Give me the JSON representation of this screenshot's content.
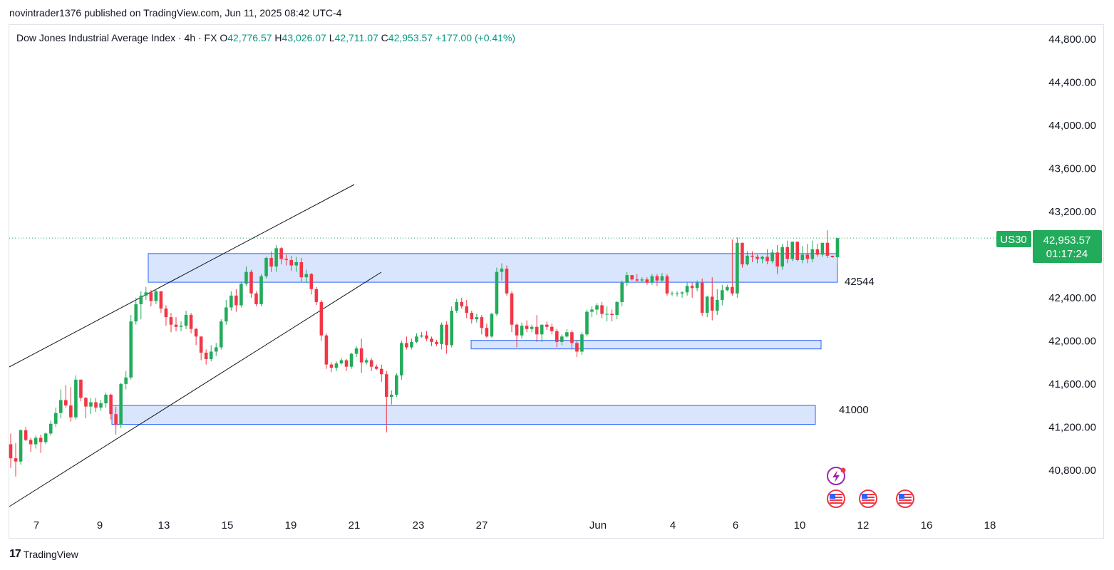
{
  "header": {
    "publish_line": "novintrader1376 published on TradingView.com, Jun 11, 2025 08:42 UTC-4"
  },
  "legend": {
    "symbol": "Dow Jones Industrial Average Index · 4h · FX",
    "open_label": "O",
    "open": "42,776.57",
    "high_label": "H",
    "high": "43,026.07",
    "low_label": "L",
    "low": "42,711.07",
    "close_label": "C",
    "close": "42,953.57",
    "change": "+177.00 (+0.41%)"
  },
  "price_tag": {
    "symbol": "US30",
    "price": "42,953.57",
    "countdown": "01:17:24"
  },
  "footer": {
    "brand": "TradingView",
    "logo_mark": "17"
  },
  "colors": {
    "up": "#089981",
    "up_candle": "#22ab5a",
    "down": "#f23645",
    "zone_fill": "#d2e0fc",
    "zone_stroke": "#2962ff",
    "tag_bg": "#22ab5a",
    "trendline": "#131722"
  },
  "chart_data": {
    "type": "candlestick",
    "y_ticks": [
      "44,800.00",
      "44,400.00",
      "44,000.00",
      "43,600.00",
      "43,200.00",
      "42,400.00",
      "42,000.00",
      "41,600.00",
      "41,200.00",
      "40,800.00"
    ],
    "y_tick_values": [
      44800,
      44400,
      44000,
      43600,
      43200,
      42400,
      42000,
      41600,
      41200,
      40800
    ],
    "ylim": [
      40350,
      45000
    ],
    "x_ticks": [
      "7",
      "9",
      "13",
      "15",
      "19",
      "21",
      "23",
      "27",
      "Jun",
      "4",
      "6",
      "10",
      "12",
      "16",
      "18"
    ],
    "zones": [
      {
        "label": "42544",
        "low": 42544,
        "high": 42810
      },
      {
        "label": "",
        "low": 41925,
        "high": 42005
      },
      {
        "label": "41000",
        "low": 41225,
        "high": 41400
      }
    ],
    "last_price": 42953.57,
    "candles": [
      [
        41040,
        40910,
        40820
      ],
      [
        40910,
        40880,
        40740
      ],
      [
        40880,
        41170,
        40850
      ],
      [
        41170,
        41080,
        41070
      ],
      [
        41080,
        41040,
        40970
      ],
      [
        41040,
        41100,
        41000
      ],
      [
        41100,
        41060,
        40960
      ],
      [
        41060,
        41140,
        41040
      ],
      [
        41140,
        41230,
        41120
      ],
      [
        41230,
        41330,
        41200
      ],
      [
        41330,
        41450,
        41280
      ],
      [
        41450,
        41400,
        41380
      ],
      [
        41400,
        41290,
        41250
      ],
      [
        41290,
        41640,
        41270
      ],
      [
        41640,
        41470,
        41440
      ],
      [
        41470,
        41390,
        41280
      ],
      [
        41390,
        41430,
        41320
      ],
      [
        41430,
        41380,
        41340
      ],
      [
        41380,
        41420,
        41350
      ],
      [
        41420,
        41500,
        41380
      ],
      [
        41500,
        41320,
        41270
      ],
      [
        41320,
        41220,
        41130
      ],
      [
        41220,
        41600,
        41190
      ],
      [
        41600,
        41660,
        41550
      ],
      [
        41660,
        42180,
        41640
      ],
      [
        42180,
        42340,
        42150
      ],
      [
        42340,
        42420,
        42200
      ],
      [
        42420,
        42450,
        42380
      ],
      [
        42450,
        42370,
        42320
      ],
      [
        42370,
        42460,
        42340
      ],
      [
        42460,
        42300,
        42260
      ],
      [
        42300,
        42220,
        42140
      ],
      [
        42220,
        42150,
        42080
      ],
      [
        42150,
        42130,
        42090
      ],
      [
        42130,
        42140,
        42090
      ],
      [
        42140,
        42240,
        42110
      ],
      [
        42240,
        42110,
        42070
      ],
      [
        42110,
        42040,
        41960
      ],
      [
        42040,
        41890,
        41820
      ],
      [
        41890,
        41830,
        41780
      ],
      [
        41830,
        41900,
        41810
      ],
      [
        41900,
        41940,
        41860
      ],
      [
        41940,
        42180,
        41920
      ],
      [
        42180,
        42310,
        42150
      ],
      [
        42310,
        42420,
        42280
      ],
      [
        42420,
        42330,
        42270
      ],
      [
        42330,
        42530,
        42310
      ],
      [
        42530,
        42640,
        42510
      ],
      [
        42640,
        42440,
        42400
      ],
      [
        42440,
        42340,
        42320
      ],
      [
        42340,
        42600,
        42320
      ],
      [
        42600,
        42770,
        42580
      ],
      [
        42770,
        42690,
        42640
      ],
      [
        42690,
        42860,
        42640
      ],
      [
        42860,
        42760,
        42710
      ],
      [
        42760,
        42750,
        42700
      ],
      [
        42750,
        42700,
        42650
      ],
      [
        42700,
        42730,
        42640
      ],
      [
        42730,
        42590,
        42550
      ],
      [
        42590,
        42620,
        42540
      ],
      [
        42620,
        42480,
        42430
      ],
      [
        42480,
        42360,
        42330
      ],
      [
        42360,
        42050,
        42000
      ],
      [
        42050,
        41780,
        41740
      ],
      [
        41780,
        41750,
        41710
      ],
      [
        41750,
        41790,
        41720
      ],
      [
        41790,
        41820,
        41780
      ],
      [
        41820,
        41760,
        41720
      ],
      [
        41760,
        41880,
        41740
      ],
      [
        41880,
        41930,
        41850
      ],
      [
        41930,
        41800,
        41700
      ],
      [
        41800,
        41820,
        41780
      ],
      [
        41820,
        41760,
        41720
      ],
      [
        41760,
        41740,
        41730
      ],
      [
        41740,
        41690,
        41620
      ],
      [
        41690,
        41480,
        41150
      ],
      [
        41480,
        41500,
        41410
      ],
      [
        41500,
        41680,
        41480
      ],
      [
        41680,
        41980,
        41640
      ],
      [
        41980,
        41940,
        41920
      ],
      [
        41940,
        41990,
        41920
      ],
      [
        41990,
        42040,
        41980
      ],
      [
        42040,
        42050,
        42030
      ],
      [
        42050,
        42020,
        42000
      ],
      [
        42020,
        41990,
        41950
      ],
      [
        41990,
        41970,
        41950
      ],
      [
        41970,
        42150,
        41920
      ],
      [
        42150,
        41960,
        41880
      ],
      [
        41960,
        42280,
        41940
      ],
      [
        42280,
        42360,
        42260
      ],
      [
        42360,
        42320,
        42300
      ],
      [
        42320,
        42260,
        42210
      ],
      [
        42260,
        42200,
        42160
      ],
      [
        42200,
        42220,
        42170
      ],
      [
        42220,
        42120,
        42060
      ],
      [
        42120,
        42040,
        42030
      ],
      [
        42040,
        42250,
        42030
      ],
      [
        42250,
        42640,
        42230
      ],
      [
        42640,
        42670,
        42560
      ],
      [
        42670,
        42440,
        42420
      ],
      [
        42440,
        42150,
        42080
      ],
      [
        42150,
        42050,
        41940
      ],
      [
        42050,
        42140,
        42020
      ],
      [
        42140,
        42110,
        42080
      ],
      [
        42110,
        42130,
        42080
      ],
      [
        42130,
        42060,
        41990
      ],
      [
        42060,
        42150,
        41990
      ],
      [
        42150,
        42130,
        42100
      ],
      [
        42130,
        42090,
        42060
      ],
      [
        42090,
        41990,
        41940
      ],
      [
        41990,
        42040,
        41960
      ],
      [
        42040,
        42080,
        42030
      ],
      [
        42080,
        41980,
        41920
      ],
      [
        41980,
        41900,
        41850
      ],
      [
        41900,
        42060,
        41870
      ],
      [
        42060,
        42270,
        42040
      ],
      [
        42270,
        42290,
        42220
      ],
      [
        42290,
        42330,
        42240
      ],
      [
        42330,
        42250,
        42210
      ],
      [
        42250,
        42250,
        42180
      ],
      [
        42250,
        42240,
        42180
      ],
      [
        42240,
        42360,
        42200
      ],
      [
        42360,
        42540,
        42320
      ],
      [
        42540,
        42610,
        42510
      ],
      [
        42610,
        42570,
        42560
      ],
      [
        42570,
        42560,
        42550
      ],
      [
        42560,
        42570,
        42540
      ],
      [
        42570,
        42540,
        42520
      ],
      [
        42540,
        42600,
        42520
      ],
      [
        42600,
        42560,
        42510
      ],
      [
        42560,
        42600,
        42540
      ],
      [
        42600,
        42440,
        42420
      ],
      [
        42440,
        42440,
        42420
      ],
      [
        42440,
        42440,
        42410
      ],
      [
        42440,
        42450,
        42400
      ],
      [
        42450,
        42510,
        42420
      ],
      [
        42510,
        42490,
        42400
      ],
      [
        42490,
        42540,
        42460
      ],
      [
        42540,
        42260,
        42230
      ],
      [
        42260,
        42410,
        42220
      ],
      [
        42410,
        42280,
        42190
      ],
      [
        42280,
        42380,
        42240
      ],
      [
        42380,
        42470,
        42330
      ],
      [
        42470,
        42500,
        42460
      ],
      [
        42500,
        42440,
        42420
      ],
      [
        42440,
        42910,
        42400
      ],
      [
        42910,
        42710,
        42680
      ],
      [
        42710,
        42790,
        42700
      ],
      [
        42790,
        42780,
        42730
      ],
      [
        42780,
        42760,
        42720
      ],
      [
        42760,
        42780,
        42720
      ],
      [
        42780,
        42740,
        42710
      ],
      [
        42740,
        42820,
        42720
      ],
      [
        42820,
        42690,
        42620
      ],
      [
        42690,
        42870,
        42660
      ],
      [
        42870,
        42760,
        42720
      ],
      [
        42760,
        42920,
        42740
      ],
      [
        42920,
        42750,
        42740
      ],
      [
        42750,
        42800,
        42720
      ],
      [
        42800,
        42760,
        42720
      ],
      [
        42760,
        42850,
        42730
      ],
      [
        42850,
        42800,
        42780
      ],
      [
        42800,
        42910,
        42780
      ],
      [
        42910,
        42790,
        42770
      ],
      [
        42790,
        42776.57,
        42770
      ],
      [
        42776.57,
        42953.57,
        42711.07
      ]
    ],
    "candle_highs": [
      41140,
      41050,
      41180,
      41200,
      41100,
      41120,
      41130,
      41150,
      41260,
      41380,
      41550,
      41590,
      41570,
      41680,
      41560,
      41480,
      41470,
      41470,
      41450,
      41520,
      41510,
      41390,
      41610,
      41720,
      42240,
      42400,
      42460,
      42500,
      42470,
      42480,
      42460,
      42330,
      42260,
      42220,
      42180,
      42280,
      42260,
      42120,
      41960,
      41920,
      41960,
      41980,
      42200,
      42380,
      42460,
      42480,
      42550,
      42690,
      42660,
      42460,
      42620,
      42780,
      42830,
      42890,
      42870,
      42800,
      42790,
      42780,
      42770,
      42660,
      42630,
      42500,
      42380,
      42070,
      41800,
      41810,
      41840,
      41830,
      41890,
      41950,
      42020,
      41840,
      41840,
      41780,
      41780,
      41720,
      41540,
      41700,
      42000,
      42040,
      42020,
      42070,
      42080,
      42090,
      42040,
      42010,
      42170,
      42180,
      42320,
      42390,
      42400,
      42380,
      42280,
      42250,
      42240,
      42160,
      42260,
      42680,
      42720,
      42700,
      42460,
      42160,
      42170,
      42190,
      42150,
      42240,
      42150,
      42180,
      42160,
      42110,
      42060,
      42110,
      42100,
      42000,
      42080,
      42290,
      42320,
      42350,
      42360,
      42320,
      42290,
      42370,
      42560,
      42640,
      42600,
      42620,
      42590,
      42590,
      42620,
      42620,
      42630,
      42620,
      42460,
      42460,
      42460,
      42540,
      42540,
      42560,
      42580,
      42420,
      42590,
      42480,
      42520,
      42520,
      42940,
      42960,
      42840,
      42830,
      42830,
      42800,
      42790,
      42850,
      42850,
      42890,
      42900,
      42930,
      42830,
      42820,
      42880,
      42900,
      42930,
      42900,
      42860,
      43026.07
    ]
  }
}
